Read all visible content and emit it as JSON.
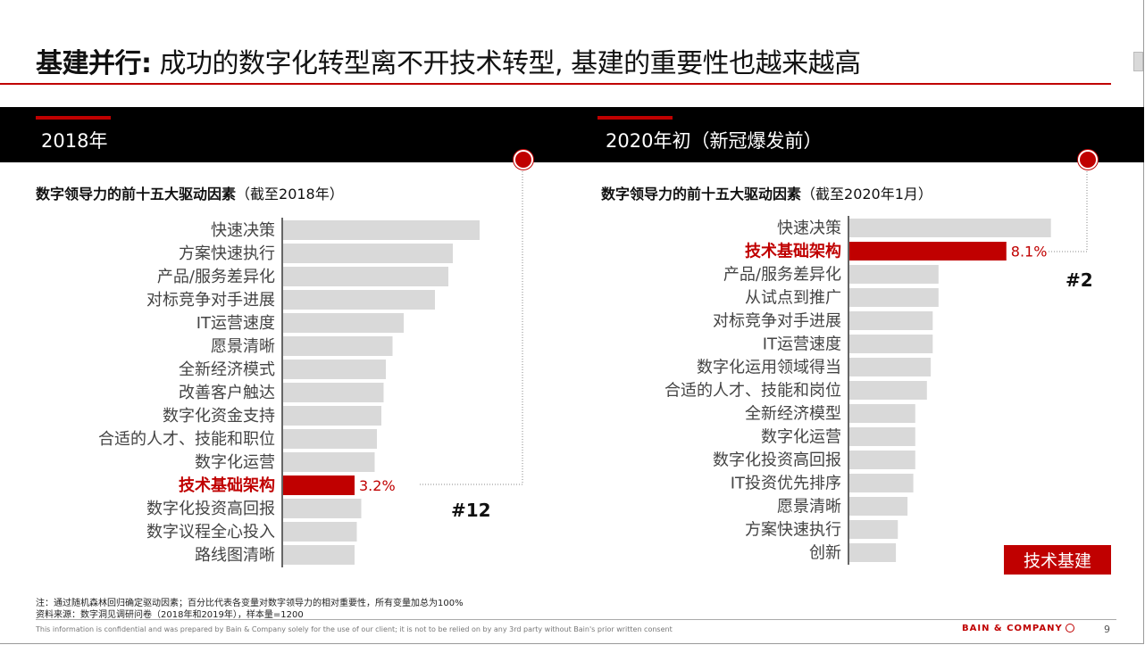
{
  "slide": {
    "title_bold": "基建并行:",
    "title_rest": " 成功的数字化转型离不开技术转型, 基建的重要性也越来越高",
    "badge": "技术基建",
    "note1": "注：通过随机森林回归确定驱动因素；百分比代表各变量对数字领导力的相对重要性，所有变量加总为100%",
    "note2": "资料来源：数字洞见调研问卷（2018年和2019年），样本量=1200",
    "confidential": "This information is confidential and was prepared by Bain & Company solely for the use of our client; it is not to be relied on by any 3rd party without Bain's prior written consent",
    "brand": "BAIN & COMPANY",
    "page_number": "9"
  },
  "colors": {
    "accent": "#c00000",
    "bar_gray": "#d9d9d9",
    "header_bg": "#000000"
  },
  "left_panel": {
    "header": "2018年",
    "subtitle_bold": "数字领导力的前十五大驱动因素",
    "subtitle_rest": "（截至2018年）",
    "rank": "#12"
  },
  "right_panel": {
    "header": "2020年初（新冠爆发前）",
    "subtitle_bold": "数字领导力的前十五大驱动因素",
    "subtitle_rest": "（截至2020年1月）",
    "rank": "#2"
  },
  "chart_data": [
    {
      "type": "bar",
      "orientation": "horizontal",
      "categories": [
        "快速决策",
        "方案快速执行",
        "产品/服务差异化",
        "对标竞争对手进展",
        "IT运营速度",
        "愿景清晰",
        "全新经济模式",
        "改善客户触达",
        "数字化资金支持",
        "合适的人才、技能和职位",
        "数字化运营",
        "技术基础架构",
        "数字化投资高回报",
        "数字议程全心投入",
        "路线图清晰"
      ],
      "values": [
        8.8,
        7.6,
        7.4,
        6.8,
        5.4,
        4.9,
        4.6,
        4.5,
        4.4,
        4.2,
        4.1,
        3.2,
        3.5,
        3.3,
        3.2
      ],
      "highlight": "技术基础架构",
      "highlight_label": "3.2%"
    },
    {
      "type": "bar",
      "orientation": "horizontal",
      "categories": [
        "快速决策",
        "技术基础架构",
        "产品/服务差异化",
        "从试点到推广",
        "对标竞争对手进展",
        "IT运营速度",
        "数字化运用领域得当",
        "合适的人才、技能和岗位",
        "全新经济模型",
        "数字化运营",
        "数字化投资高回报",
        "IT投资优先排序",
        "愿景清晰",
        "方案快速执行",
        "创新"
      ],
      "values": [
        10.4,
        8.1,
        4.6,
        4.6,
        4.3,
        4.3,
        4.2,
        4.0,
        3.4,
        3.4,
        3.4,
        3.3,
        3.0,
        2.5,
        2.4
      ],
      "highlight": "技术基础架构",
      "highlight_label": "8.1%"
    }
  ]
}
